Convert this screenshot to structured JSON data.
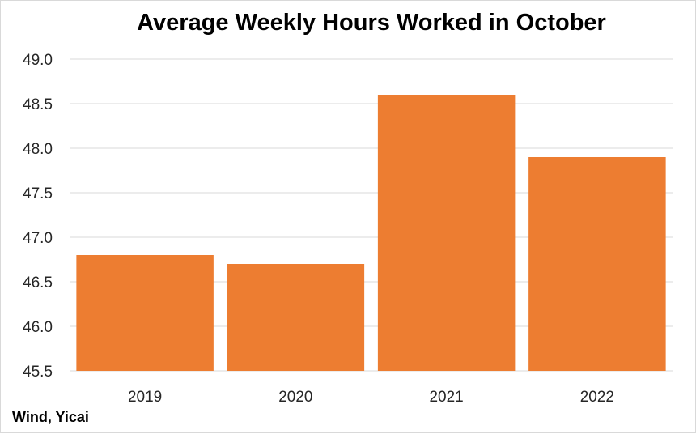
{
  "chart_data": {
    "type": "bar",
    "title": "Average Weekly Hours Worked in October",
    "categories": [
      "2019",
      "2020",
      "2021",
      "2022"
    ],
    "values": [
      46.8,
      46.7,
      48.6,
      47.9
    ],
    "ylim": [
      45.5,
      49.0
    ],
    "yticks": [
      45.5,
      46.0,
      46.5,
      47.0,
      47.5,
      48.0,
      48.5,
      49.0
    ],
    "xlabel": "",
    "ylabel": "",
    "grid": true,
    "legend": "none",
    "bar_color": "#ED7D31",
    "grid_color": "#D9D9D9"
  },
  "source": "Wind, Yicai"
}
